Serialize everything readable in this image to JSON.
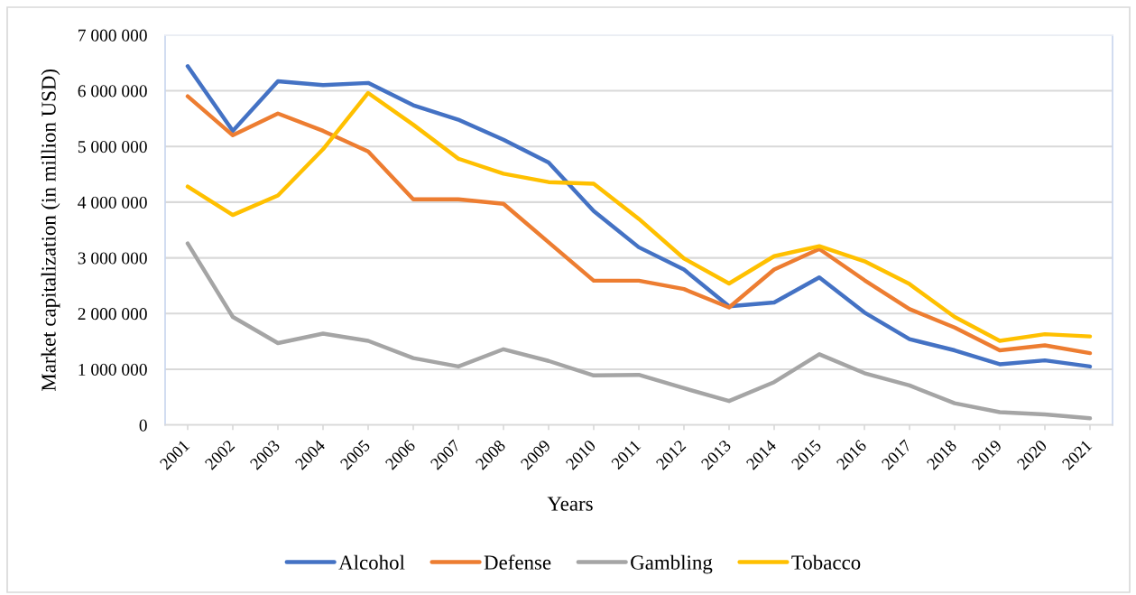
{
  "chart_data": {
    "type": "line",
    "xlabel": "Years",
    "ylabel": "Market capitalization (in million USD)",
    "categories": [
      "2001",
      "2002",
      "2003",
      "2004",
      "2005",
      "2006",
      "2007",
      "2008",
      "2009",
      "2010",
      "2011",
      "2012",
      "2013",
      "2014",
      "2015",
      "2016",
      "2017",
      "2018",
      "2019",
      "2020",
      "2021"
    ],
    "series": [
      {
        "name": "Alcohol",
        "color": "#4472c4",
        "values": [
          6440000,
          5280000,
          6170000,
          6100000,
          6140000,
          5740000,
          5480000,
          5120000,
          4710000,
          3840000,
          3190000,
          2790000,
          2130000,
          2200000,
          2650000,
          2020000,
          1540000,
          1340000,
          1090000,
          1160000,
          1050000
        ]
      },
      {
        "name": "Defense",
        "color": "#ed7d31",
        "values": [
          5900000,
          5200000,
          5590000,
          5280000,
          4910000,
          4050000,
          4050000,
          3970000,
          3280000,
          2590000,
          2590000,
          2440000,
          2110000,
          2790000,
          3160000,
          2600000,
          2080000,
          1750000,
          1340000,
          1430000,
          1290000
        ]
      },
      {
        "name": "Gambling",
        "color": "#a5a5a5",
        "values": [
          3260000,
          1940000,
          1470000,
          1640000,
          1510000,
          1200000,
          1050000,
          1360000,
          1150000,
          890000,
          900000,
          660000,
          430000,
          770000,
          1270000,
          930000,
          710000,
          390000,
          230000,
          190000,
          120000
        ]
      },
      {
        "name": "Tobacco",
        "color": "#ffc000",
        "values": [
          4280000,
          3770000,
          4120000,
          4950000,
          5960000,
          5390000,
          4780000,
          4510000,
          4360000,
          4330000,
          3700000,
          2990000,
          2540000,
          3030000,
          3210000,
          2940000,
          2530000,
          1940000,
          1510000,
          1630000,
          1590000
        ]
      }
    ],
    "ylim": [
      0,
      7000000
    ],
    "yticks": [
      0,
      {
        "value": 1000000,
        "label": "1 000 000"
      },
      {
        "value": 2000000,
        "label": "2 000 000"
      },
      {
        "value": 3000000,
        "label": "3 000 000"
      },
      {
        "value": 4000000,
        "label": "4 000 000"
      },
      {
        "value": 5000000,
        "label": "5 000 000"
      },
      {
        "value": 6000000,
        "label": "6 000 000"
      },
      {
        "value": 7000000,
        "label": "7 000 000"
      }
    ],
    "grid": "y",
    "legend": "bottom"
  }
}
